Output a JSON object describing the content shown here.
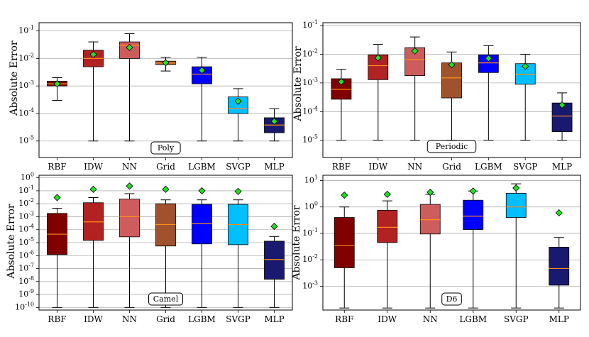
{
  "figure": {
    "ylabel": "Absolute Error"
  },
  "chart_data": [
    {
      "type": "box",
      "label": "Poly",
      "label_position": "bottom-center",
      "y_scale": "log",
      "ylim_exp": [
        -5.6,
        -0.7
      ],
      "ytick_exps": [
        -5,
        -4,
        -3,
        -2,
        -1
      ],
      "box_stats_order": [
        "whisker_low",
        "q1",
        "median",
        "q3",
        "whisker_high",
        "mean"
      ],
      "categories": [
        "RBF",
        "IDW",
        "NN",
        "Grid",
        "LGBM",
        "SVGP",
        "MLP"
      ],
      "colors": [
        "#800000",
        "#b22222",
        "#cd5c5c",
        "#a0522d",
        "#0000ff",
        "#00bfff",
        "#191970"
      ],
      "boxes": [
        [
          0.0003,
          0.001,
          0.0012,
          0.0015,
          0.002,
          0.0012
        ],
        [
          1e-05,
          0.005,
          0.01,
          0.02,
          0.04,
          0.014
        ],
        [
          1e-05,
          0.01,
          0.03,
          0.04,
          0.08,
          0.025
        ],
        [
          0.0035,
          0.006,
          0.0068,
          0.008,
          0.011,
          0.007
        ],
        [
          1e-05,
          0.0012,
          0.0027,
          0.005,
          0.011,
          0.0037
        ],
        [
          1e-05,
          0.0001,
          0.00015,
          0.0004,
          0.0008,
          0.00028
        ],
        [
          1e-05,
          2e-05,
          3.8e-05,
          7e-05,
          0.00015,
          5.2e-05
        ]
      ]
    },
    {
      "type": "box",
      "label": "Periodic",
      "label_position": "bottom-center",
      "y_scale": "log",
      "ylim_exp": [
        -5.6,
        -0.9
      ],
      "ytick_exps": [
        -5,
        -4,
        -3,
        -2,
        -1
      ],
      "box_stats_order": [
        "whisker_low",
        "q1",
        "median",
        "q3",
        "whisker_high",
        "mean"
      ],
      "categories": [
        "RBF",
        "IDW",
        "NN",
        "Grid",
        "LGBM",
        "SVGP",
        "MLP"
      ],
      "colors": [
        "#800000",
        "#b22222",
        "#cd5c5c",
        "#a0522d",
        "#0000ff",
        "#00bfff",
        "#191970"
      ],
      "boxes": [
        [
          1e-05,
          0.00027,
          0.0006,
          0.0014,
          0.003,
          0.0011
        ],
        [
          1e-05,
          0.0013,
          0.004,
          0.0095,
          0.022,
          0.0075
        ],
        [
          1e-05,
          0.0018,
          0.0065,
          0.017,
          0.04,
          0.013
        ],
        [
          1e-05,
          0.0003,
          0.0015,
          0.005,
          0.012,
          0.0043
        ],
        [
          1e-05,
          0.0023,
          0.005,
          0.0095,
          0.02,
          0.0072
        ],
        [
          1e-05,
          0.0009,
          0.002,
          0.0047,
          0.01,
          0.0038
        ],
        [
          1e-05,
          2e-05,
          7e-05,
          0.0002,
          0.00045,
          0.00017
        ]
      ]
    },
    {
      "type": "box",
      "label": "Camel",
      "label_position": "bottom-center",
      "y_scale": "log",
      "ylim_exp": [
        -10.2,
        0.2
      ],
      "ytick_exps": [
        -10,
        -9,
        -8,
        -7,
        -6,
        -5,
        -4,
        -3,
        -2,
        -1,
        0
      ],
      "box_stats_order": [
        "whisker_low",
        "q1",
        "median",
        "q3",
        "whisker_high",
        "mean"
      ],
      "categories": [
        "RBF",
        "IDW",
        "NN",
        "Grid",
        "LGBM",
        "SVGP",
        "MLP"
      ],
      "colors": [
        "#800000",
        "#b22222",
        "#cd5c5c",
        "#a0522d",
        "#0000ff",
        "#00bfff",
        "#191970"
      ],
      "boxes": [
        [
          1e-10,
          1.2e-06,
          4.5e-05,
          0.0018,
          0.0045,
          0.03
        ],
        [
          1e-10,
          1.5e-05,
          0.0004,
          0.012,
          0.03,
          0.13
        ],
        [
          1e-10,
          2.8e-05,
          0.001,
          0.023,
          0.06,
          0.23
        ],
        [
          1e-10,
          5.5e-06,
          0.00025,
          0.01,
          0.02,
          0.13
        ],
        [
          1e-10,
          8e-06,
          0.0003,
          0.009,
          0.02,
          0.1
        ],
        [
          1e-10,
          7e-06,
          0.00025,
          0.009,
          0.02,
          0.09
        ],
        [
          1e-10,
          1.5e-08,
          5e-07,
          1.3e-05,
          3e-05,
          0.00018
        ]
      ]
    },
    {
      "type": "box",
      "label": "D6",
      "label_position": "bottom-center",
      "y_scale": "log",
      "ylim_exp": [
        -3.9,
        1.2
      ],
      "ytick_exps": [
        -3,
        -2,
        -1,
        0,
        1
      ],
      "box_stats_order": [
        "whisker_low",
        "q1",
        "median",
        "q3",
        "whisker_high",
        "mean"
      ],
      "categories": [
        "RBF",
        "IDW",
        "NN",
        "LGBM",
        "SVGP",
        "MLP"
      ],
      "colors": [
        "#800000",
        "#b22222",
        "#cd5c5c",
        "#0000ff",
        "#00bfff",
        "#191970"
      ],
      "boxes": [
        [
          0.00015,
          0.005,
          0.035,
          0.4,
          1.0,
          2.8
        ],
        [
          0.00015,
          0.045,
          0.17,
          0.75,
          1.7,
          3.0
        ],
        [
          0.00015,
          0.095,
          0.33,
          1.25,
          3.0,
          3.6
        ],
        [
          0.00015,
          0.14,
          0.45,
          1.8,
          4.0,
          4.0
        ],
        [
          0.00015,
          0.4,
          1.0,
          3.3,
          7.5,
          5.2
        ],
        [
          0.00015,
          0.0011,
          0.0047,
          0.03,
          0.07,
          0.6
        ]
      ]
    }
  ]
}
